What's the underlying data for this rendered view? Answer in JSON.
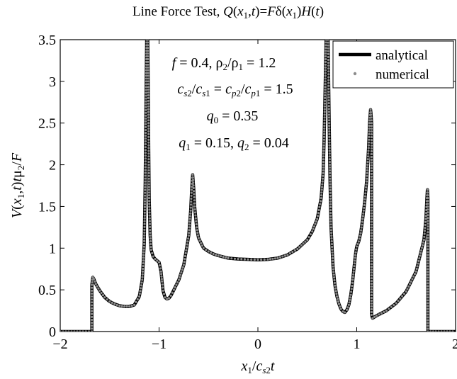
{
  "chart_data": {
    "type": "line",
    "title_prefix": "Line Force Test, ",
    "title_math": "Q(x1,t)=Fδ(x1)H(t)",
    "xlabel": "x1/cs2t",
    "ylabel": "V(x1,t)tμ2/F",
    "xlim": [
      -2,
      2
    ],
    "ylim": [
      0,
      3.5
    ],
    "xticks": [
      -2,
      -1,
      0,
      1,
      2
    ],
    "xtick_labels": [
      "−2",
      "−1",
      "0",
      "1",
      "2"
    ],
    "yticks": [
      0,
      0.5,
      1,
      1.5,
      2,
      2.5,
      3,
      3.5
    ],
    "ytick_labels": [
      "0",
      "0.5",
      "1",
      "1.5",
      "2",
      "2.5",
      "3",
      "3.5"
    ],
    "grid": false,
    "legend_position": "top-right",
    "annotations": [
      "f = 0.4,  ρ2/ρ1 = 1.2",
      "cs2/cs1 = cp2/cp1 = 1.5",
      "q0 = 0.35",
      "q1 = 0.15,  q2 = 0.04"
    ],
    "series": [
      {
        "name": "analytical",
        "style": "solid thick line",
        "color": "#000000",
        "x": [
          -2.0,
          -1.8,
          -1.68,
          -1.68,
          -1.67,
          -1.66,
          -1.64,
          -1.6,
          -1.55,
          -1.5,
          -1.45,
          -1.4,
          -1.35,
          -1.3,
          -1.25,
          -1.2,
          -1.17,
          -1.15,
          -1.14,
          -1.13,
          -1.125,
          -1.12,
          -1.115,
          -1.11,
          -1.105,
          -1.1,
          -1.09,
          -1.08,
          -1.06,
          -1.04,
          -1.02,
          -1.0,
          -0.98,
          -0.97,
          -0.96,
          -0.94,
          -0.92,
          -0.9,
          -0.88,
          -0.85,
          -0.8,
          -0.75,
          -0.7,
          -0.68,
          -0.67,
          -0.66,
          -0.65,
          -0.64,
          -0.62,
          -0.6,
          -0.55,
          -0.5,
          -0.45,
          -0.4,
          -0.3,
          -0.2,
          -0.1,
          0.0,
          0.1,
          0.2,
          0.3,
          0.4,
          0.5,
          0.55,
          0.6,
          0.64,
          0.66,
          0.67,
          0.68,
          0.69,
          0.7,
          0.71,
          0.72,
          0.73,
          0.74,
          0.76,
          0.78,
          0.8,
          0.82,
          0.84,
          0.86,
          0.88,
          0.9,
          0.92,
          0.94,
          0.96,
          0.98,
          0.99,
          1.0,
          1.02,
          1.04,
          1.06,
          1.08,
          1.1,
          1.12,
          1.13,
          1.14,
          1.145,
          1.15,
          1.15,
          1.16,
          1.2,
          1.3,
          1.4,
          1.5,
          1.6,
          1.68,
          1.7,
          1.71,
          1.715,
          1.72,
          1.72,
          1.8,
          2.0
        ],
        "y": [
          0.0,
          0.0,
          0.0,
          0.56,
          0.65,
          0.63,
          0.57,
          0.49,
          0.41,
          0.36,
          0.33,
          0.31,
          0.3,
          0.3,
          0.32,
          0.42,
          0.62,
          1.05,
          1.8,
          3.0,
          3.5,
          3.5,
          3.5,
          3.0,
          2.2,
          1.6,
          1.15,
          0.98,
          0.9,
          0.87,
          0.85,
          0.83,
          0.72,
          0.6,
          0.49,
          0.41,
          0.39,
          0.4,
          0.43,
          0.5,
          0.62,
          0.8,
          1.15,
          1.45,
          1.7,
          1.88,
          1.72,
          1.5,
          1.25,
          1.12,
          1.0,
          0.96,
          0.93,
          0.91,
          0.88,
          0.87,
          0.865,
          0.86,
          0.865,
          0.88,
          0.92,
          0.99,
          1.1,
          1.2,
          1.35,
          1.6,
          1.9,
          2.3,
          2.9,
          3.5,
          3.5,
          3.5,
          2.6,
          1.8,
          1.25,
          0.78,
          0.55,
          0.42,
          0.33,
          0.27,
          0.24,
          0.23,
          0.26,
          0.32,
          0.44,
          0.62,
          0.85,
          0.95,
          1.02,
          1.08,
          1.18,
          1.35,
          1.55,
          1.8,
          2.2,
          2.5,
          2.66,
          2.6,
          2.5,
          0.2,
          0.16,
          0.19,
          0.25,
          0.34,
          0.48,
          0.72,
          1.1,
          1.35,
          1.6,
          1.7,
          1.6,
          0.0,
          0.0,
          0.0
        ]
      },
      {
        "name": "numerical",
        "style": "gray dot markers",
        "color": "#8c8c8c"
      }
    ]
  }
}
